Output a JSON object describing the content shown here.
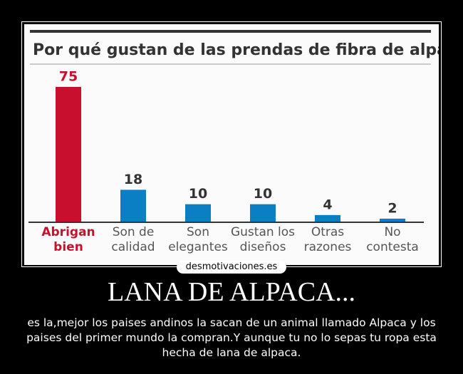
{
  "chart_data": {
    "type": "bar",
    "title": "Por qué gustan de las prendas de fibra de alpaca",
    "categories": [
      "Abrigan bien",
      "Son de calidad",
      "Son elegantes",
      "Gustan los diseños",
      "Otras razones",
      "No contesta"
    ],
    "values": [
      75,
      18,
      10,
      10,
      4,
      2
    ],
    "colors": [
      "#c8102e",
      "#0b7fc4",
      "#0b7fc4",
      "#0b7fc4",
      "#0b7fc4",
      "#0b7fc4"
    ]
  },
  "watermark": "desmotivaciones.es",
  "poster_title": "LANA DE ALPACA...",
  "caption": "es la,mejor los paises andinos la sacan de un animal llamado Alpaca y los paises del primer mundo la compran.Y aunque tu no lo sepas tu ropa esta hecha de lana de alpaca."
}
